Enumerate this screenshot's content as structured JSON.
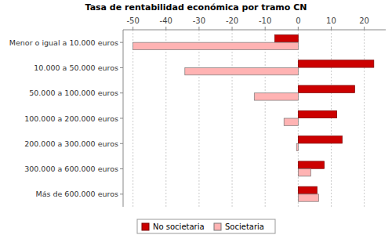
{
  "chart_data": {
    "type": "bar",
    "orientation": "horizontal",
    "title": "Tasa de rentabilidad económica por tramo CN",
    "categories": [
      "Menor o igual a 10.000 euros",
      "10.000 a 50.000 euros",
      "50.000 a 100.000 euros",
      "100.000 a 200.000 euros",
      "200.000 a 300.000 euros",
      "300.000 a 600.000 euros",
      "Más de 600.000 euros"
    ],
    "series": [
      {
        "name": "No societaria",
        "color": "#cc0000",
        "values": [
          -7.1,
          22.9,
          17.1,
          11.7,
          13.3,
          7.9,
          5.7
        ]
      },
      {
        "name": "Societaria",
        "color": "#ffb3b3",
        "values": [
          -50,
          -34.3,
          -13.3,
          -4.3,
          -0.5,
          3.8,
          6.2
        ]
      }
    ],
    "xlim": [
      -53,
      26.5
    ],
    "xticks": [
      -50,
      -40,
      -30,
      -20,
      -10,
      0,
      10,
      20
    ],
    "grid": true,
    "legend": "bottom"
  }
}
